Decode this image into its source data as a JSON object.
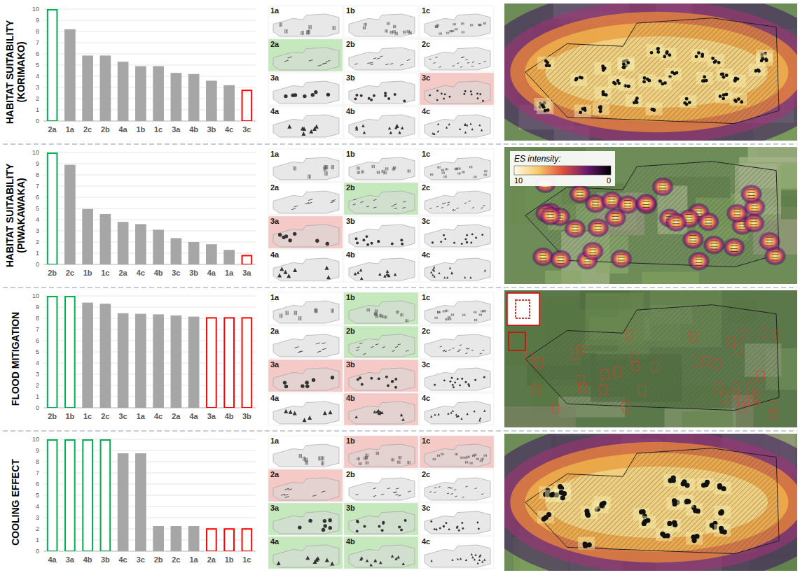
{
  "chart_data": [
    {
      "type": "bar",
      "title": "HABITAT SUITABILITY (KORIMAKO)",
      "categories": [
        "2a",
        "1a",
        "2c",
        "2b",
        "4a",
        "1b",
        "1c",
        "3a",
        "4b",
        "3b",
        "4c",
        "3c"
      ],
      "values": [
        10,
        8.2,
        5.85,
        5.85,
        5.3,
        4.9,
        4.9,
        4.3,
        4.2,
        3.6,
        3.2,
        2.8
      ],
      "color": "#a6a6a6",
      "colors": [
        "#00b050",
        "#a6a6a6",
        "#a6a6a6",
        "#a6a6a6",
        "#a6a6a6",
        "#a6a6a6",
        "#a6a6a6",
        "#a6a6a6",
        "#a6a6a6",
        "#a6a6a6",
        "#a6a6a6",
        "#ff0000"
      ],
      "ylim": [
        0,
        10
      ],
      "yticks": [
        0,
        1,
        2,
        3,
        4,
        5,
        6,
        7,
        8,
        9,
        10
      ],
      "grid": true
    },
    {
      "type": "bar",
      "title": "HABITAT SUITABILITY (PIWAKAWAKA)",
      "categories": [
        "2b",
        "2c",
        "1b",
        "1c",
        "2a",
        "4c",
        "4b",
        "3c",
        "3b",
        "4a",
        "1a",
        "3a"
      ],
      "values": [
        10,
        8.9,
        4.95,
        4.5,
        3.8,
        3.6,
        3.1,
        2.35,
        2.0,
        1.8,
        1.3,
        0.85
      ],
      "color": "#a6a6a6",
      "colors": [
        "#00b050",
        "#a6a6a6",
        "#a6a6a6",
        "#a6a6a6",
        "#a6a6a6",
        "#a6a6a6",
        "#a6a6a6",
        "#a6a6a6",
        "#a6a6a6",
        "#a6a6a6",
        "#a6a6a6",
        "#ff0000"
      ],
      "ylim": [
        0,
        10
      ],
      "yticks": [
        0,
        1,
        2,
        3,
        4,
        5,
        6,
        7,
        8,
        9,
        10
      ],
      "grid": true
    },
    {
      "type": "bar",
      "title": "FLOOD MITIGATION",
      "categories": [
        "2b",
        "1b",
        "1c",
        "2c",
        "3c",
        "1a",
        "4c",
        "2a",
        "4a",
        "3a",
        "4b",
        "3b"
      ],
      "values": [
        10,
        10,
        9.4,
        9.3,
        8.45,
        8.4,
        8.35,
        8.25,
        8.15,
        8.1,
        8.1,
        8.1
      ],
      "color": "#a6a6a6",
      "colors": [
        "#00b050",
        "#00b050",
        "#a6a6a6",
        "#a6a6a6",
        "#a6a6a6",
        "#a6a6a6",
        "#a6a6a6",
        "#a6a6a6",
        "#a6a6a6",
        "#ff0000",
        "#ff0000",
        "#ff0000"
      ],
      "ylim": [
        0,
        10
      ],
      "yticks": [
        0,
        1,
        2,
        3,
        4,
        5,
        6,
        7,
        8,
        9,
        10
      ],
      "grid": true
    },
    {
      "type": "bar",
      "title": "COOLING EFFECT",
      "categories": [
        "4a",
        "3a",
        "4b",
        "3b",
        "4c",
        "3c",
        "2b",
        "2c",
        "1a",
        "2a",
        "1b",
        "1c"
      ],
      "values": [
        10,
        10,
        10,
        10,
        8.75,
        8.75,
        2.25,
        2.25,
        2.25,
        2.05,
        2.05,
        2.05
      ],
      "color": "#a6a6a6",
      "colors": [
        "#00b050",
        "#00b050",
        "#00b050",
        "#00b050",
        "#a6a6a6",
        "#a6a6a6",
        "#a6a6a6",
        "#a6a6a6",
        "#a6a6a6",
        "#ff0000",
        "#ff0000",
        "#ff0000"
      ],
      "ylim": [
        0,
        10
      ],
      "yticks": [
        0,
        1,
        2,
        3,
        4,
        5,
        6,
        7,
        8,
        9,
        10
      ],
      "grid": true
    }
  ],
  "layouts": [
    {
      "designs": [
        "1a",
        "1b",
        "1c",
        "2a",
        "2b",
        "2c",
        "3a",
        "3b",
        "3c",
        "4a",
        "4b",
        "4c"
      ],
      "best": [
        "2a"
      ],
      "worst": [
        "3c"
      ]
    },
    {
      "designs": [
        "1a",
        "1b",
        "1c",
        "2a",
        "2b",
        "2c",
        "3a",
        "3b",
        "3c",
        "4a",
        "4b",
        "4c"
      ],
      "best": [
        "2b"
      ],
      "worst": [
        "3a"
      ]
    },
    {
      "designs": [
        "1a",
        "1b",
        "1c",
        "2a",
        "2b",
        "2c",
        "3a",
        "3b",
        "3c",
        "4a",
        "4b",
        "4c"
      ],
      "best": [
        "1b",
        "2b"
      ],
      "worst": [
        "3a",
        "3b",
        "4b"
      ]
    },
    {
      "designs": [
        "1a",
        "1b",
        "1c",
        "2a",
        "2b",
        "2c",
        "3a",
        "3b",
        "3c",
        "4a",
        "4b",
        "4c"
      ],
      "best": [
        "3a",
        "3b",
        "4a",
        "4b"
      ],
      "worst": [
        "1b",
        "1c",
        "2a"
      ]
    }
  ],
  "map_legend": {
    "title": "ES intensity:",
    "max": 10,
    "min": 0
  }
}
